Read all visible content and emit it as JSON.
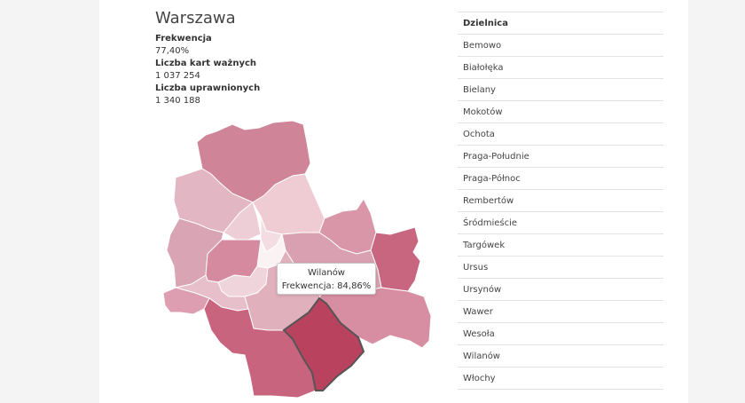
{
  "summary": {
    "city": "Warszawa",
    "turnout_label": "Frekwencja",
    "turnout_value": "77,40%",
    "valid_cards_label": "Liczba kart ważnych",
    "valid_cards_value": "1 037 254",
    "eligible_label": "Liczba uprawnionych",
    "eligible_value": "1 340 188"
  },
  "tooltip": {
    "district": "Wilanów",
    "text": "Frekwencja: 84,86%"
  },
  "table": {
    "header": "Dzielnica",
    "rows": [
      "Bemowo",
      "Białołęka",
      "Bielany",
      "Mokotów",
      "Ochota",
      "Praga-Południe",
      "Praga-Północ",
      "Rembertów",
      "Śródmieście",
      "Targówek",
      "Ursus",
      "Ursynów",
      "Wawer",
      "Wesoła",
      "Wilanów",
      "Włochy"
    ]
  },
  "map": {
    "highlighted": "Wilanów",
    "colors": {
      "Bemowo": "#d9a4b4",
      "Białołęka": "#cf8498",
      "Bielany": "#e2b6c2",
      "Mokotów": "#e0b0bd",
      "Ochota": "#f0d4dc",
      "Praga-Południe": "#d8a0b0",
      "Praga-Północ": "#f3dde3",
      "Rembertów": "#d996a8",
      "Śródmieście": "#fbf2f4",
      "Targówek": "#efcbd4",
      "Ursus": "#dc9eb0",
      "Ursynów": "#c9647f",
      "Wawer": "#d88ea2",
      "Wesoła": "#c86680",
      "Wilanów": "#b9435f",
      "Włochy": "#e6bfcb",
      "Żoliborz": "#edcdd6",
      "Wola": "#d68aa0"
    }
  }
}
